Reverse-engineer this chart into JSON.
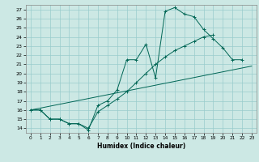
{
  "xlabel": "Humidex (Indice chaleur)",
  "background_color": "#cce8e4",
  "grid_color": "#99cccc",
  "line_color": "#006655",
  "xlim": [
    -0.5,
    23.5
  ],
  "ylim": [
    13.5,
    27.5
  ],
  "series1_x": [
    0,
    1,
    2,
    3,
    4,
    5,
    6,
    7,
    8,
    9,
    10,
    11,
    12,
    13,
    14,
    15,
    16,
    17,
    18,
    19,
    20,
    21,
    22
  ],
  "series1_y": [
    16,
    16,
    15,
    15,
    14.5,
    14.5,
    13.8,
    16.5,
    17.0,
    18.2,
    21.5,
    21.5,
    23.2,
    19.5,
    26.8,
    27.2,
    26.5,
    26.2,
    24.8,
    23.8,
    22.8,
    21.5,
    21.5
  ],
  "series2_x": [
    0,
    1,
    2,
    3,
    4,
    5,
    6,
    7,
    8,
    9,
    10,
    11,
    12,
    13,
    14,
    15,
    16,
    17,
    18,
    19
  ],
  "series2_y": [
    16.0,
    16.0,
    15.0,
    15.0,
    14.5,
    14.5,
    14.0,
    15.8,
    16.5,
    17.2,
    18.0,
    19.0,
    20.0,
    21.0,
    21.8,
    22.5,
    23.0,
    23.5,
    24.0,
    24.2
  ],
  "series3_x": [
    0,
    23
  ],
  "series3_y": [
    16.0,
    20.8
  ],
  "xtick_fontsize": 4.2,
  "ytick_fontsize": 4.5,
  "xlabel_fontsize": 5.5
}
